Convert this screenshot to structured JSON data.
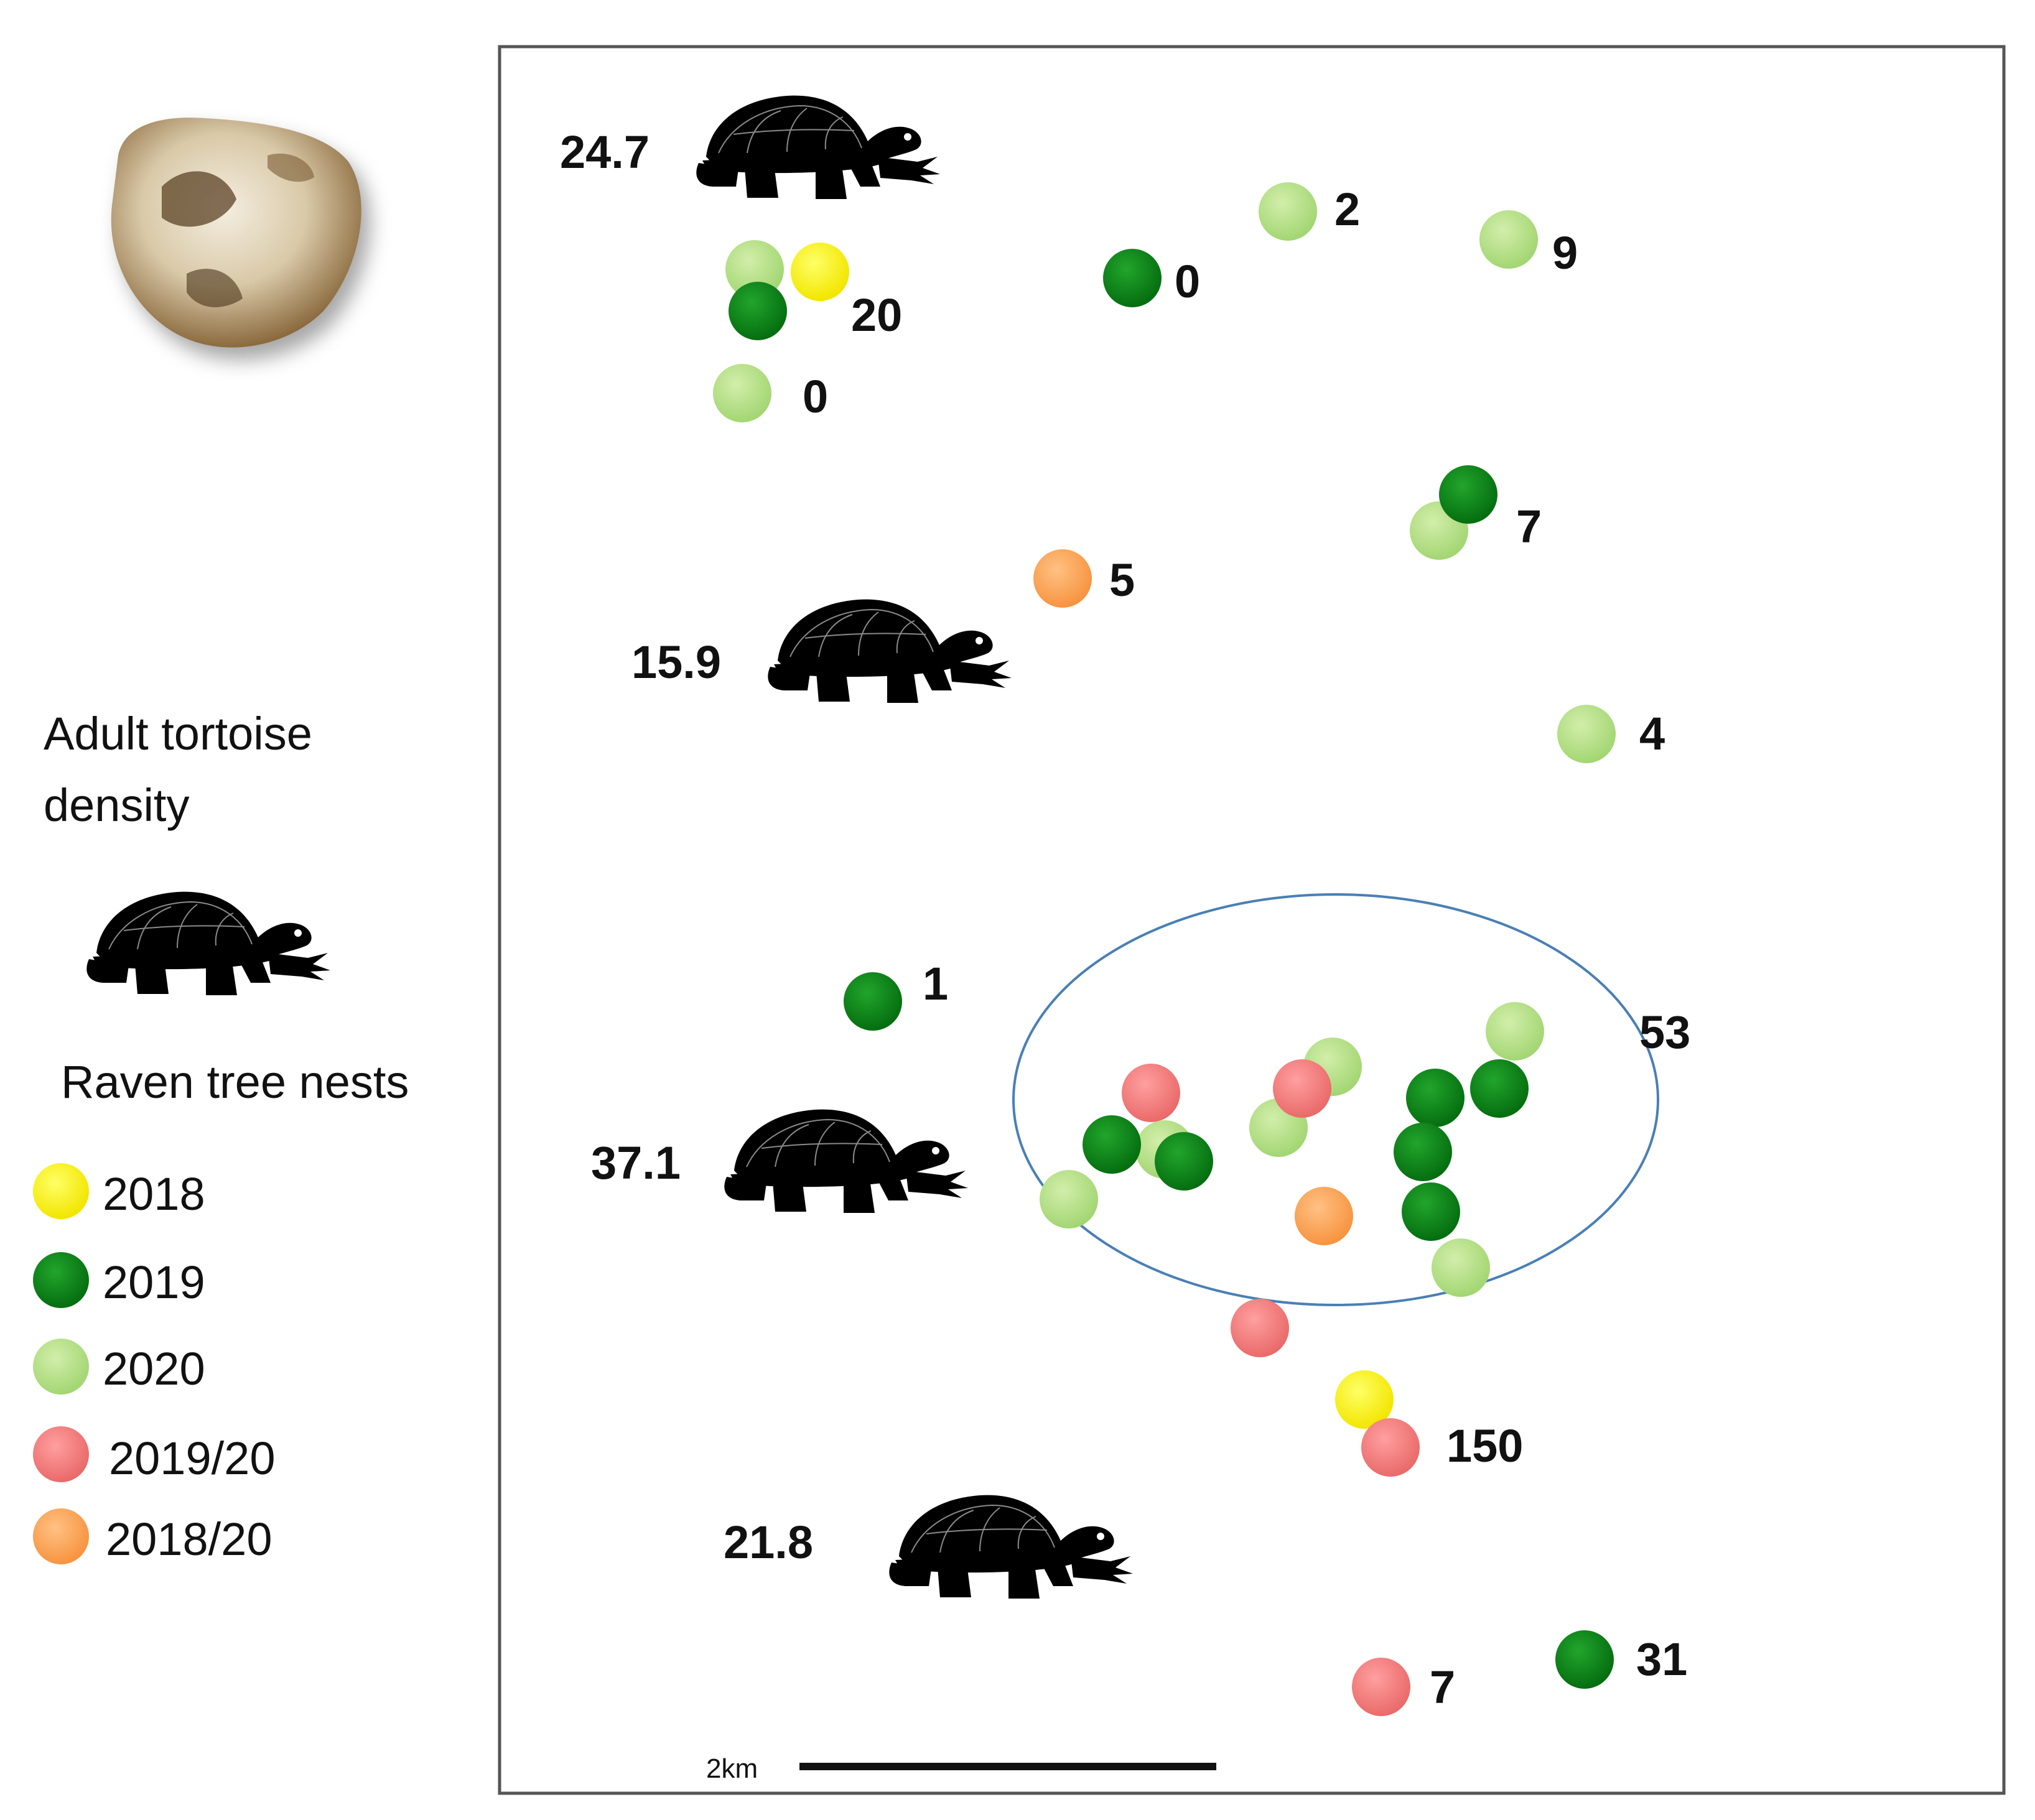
{
  "legend": {
    "density_title_line1": "Adult tortoise",
    "density_title_line2": "density",
    "nests_title": "Raven tree nests",
    "items": [
      {
        "label": "2018",
        "color": "#ffff00"
      },
      {
        "label": "2019",
        "color": "#0b8a16"
      },
      {
        "label": "2020",
        "color": "#b9e08a"
      },
      {
        "label": "2019/20",
        "color": "#f37e7e"
      },
      {
        "label": "2018/20",
        "color": "#fba45a"
      }
    ]
  },
  "map": {
    "density_labels": [
      "24.7",
      "15.9",
      "37.1",
      "21.8"
    ],
    "nest_counts": [
      "2",
      "9",
      "0",
      "20",
      "0",
      "7",
      "5",
      "4",
      "1",
      "53",
      "150",
      "31",
      "7"
    ],
    "scale_label": "2km"
  },
  "colors": {
    "nest_2018": "#ffff00",
    "nest_2019": "#0b8a16",
    "nest_2020": "#b9e08a",
    "nest_2019_20": "#f37e7e",
    "nest_2018_20": "#fba45a",
    "cluster_outline": "#4a7fb5",
    "frame": "#555555"
  },
  "icons": [
    "tortoise-silhouette-icon",
    "raven-egg-photo-icon"
  ]
}
